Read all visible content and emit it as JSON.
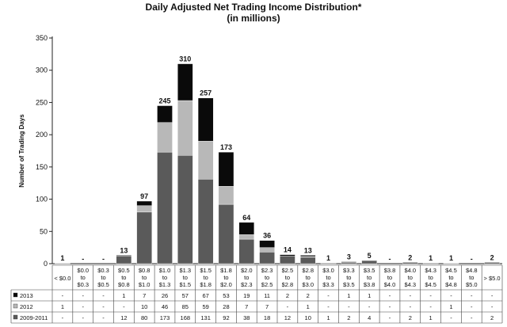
{
  "chart_data": {
    "type": "bar",
    "stacked": true,
    "title": "Daily Adjusted Net Trading Income Distribution*",
    "subtitle": "(in millions)",
    "ylabel": "Number of Trading Days",
    "xlabel": "",
    "ylim": [
      0,
      350
    ],
    "yticks": [
      0,
      50,
      100,
      150,
      200,
      250,
      300,
      350
    ],
    "categories": [
      "< $0.0",
      "$0.0\nto\n$0.3",
      "$0.3\nto\n$0.5",
      "$0.5\nto\n$0.8",
      "$0.8\nto\n$1.0",
      "$1.0\nto\n$1.3",
      "$1.3\nto\n$1.5",
      "$1.5\nto\n$1.8",
      "$1.8\nto\n$2.0",
      "$2.0\nto\n$2.3",
      "$2.3\nto\n$2.5",
      "$2.5\nto\n$2.8",
      "$2.8\nto\n$3.0",
      "$3.0\nto\n$3.3",
      "$3.3\nto\n$3.5",
      "$3.5\nto\n$3.8",
      "$3.8\nto\n$4.0",
      "$4.0\nto\n$4.3",
      "$4.3\nto\n$4.5",
      "$4.5\nto\n$4.8",
      "$4.8\nto\n$5.0",
      "> $5.0"
    ],
    "totals": [
      "1",
      "-",
      "-",
      "13",
      "97",
      "245",
      "310",
      "257",
      "173",
      "64",
      "36",
      "14",
      "13",
      "1",
      "3",
      "5",
      "-",
      "2",
      "1",
      "1",
      "-",
      "2"
    ],
    "series": [
      {
        "name": "2009-2011",
        "color": "#5a5a5a",
        "values": [
          0,
          0,
          0,
          12,
          80,
          173,
          168,
          131,
          92,
          38,
          18,
          12,
          10,
          1,
          2,
          4,
          0,
          2,
          1,
          0,
          0,
          2
        ],
        "labels": [
          "-",
          "-",
          "-",
          "12",
          "80",
          "173",
          "168",
          "131",
          "92",
          "38",
          "18",
          "12",
          "10",
          "1",
          "2",
          "4",
          "-",
          "2",
          "1",
          "-",
          "-",
          "2"
        ]
      },
      {
        "name": "2012",
        "color": "#b8b8b8",
        "values": [
          1,
          0,
          0,
          0,
          10,
          46,
          85,
          59,
          28,
          7,
          7,
          0,
          1,
          0,
          0,
          0,
          0,
          0,
          0,
          1,
          0,
          0
        ],
        "labels": [
          "1",
          "-",
          "-",
          "-",
          "10",
          "46",
          "85",
          "59",
          "28",
          "7",
          "7",
          "-",
          "1",
          "-",
          "-",
          "-",
          "-",
          "-",
          "-",
          "1",
          "-",
          "-"
        ]
      },
      {
        "name": "2013",
        "color": "#0a0a0a",
        "values": [
          0,
          0,
          0,
          1,
          7,
          26,
          57,
          67,
          53,
          19,
          11,
          2,
          2,
          0,
          1,
          1,
          0,
          0,
          0,
          0,
          0,
          0
        ],
        "labels": [
          "-",
          "-",
          "-",
          "1",
          "7",
          "26",
          "57",
          "67",
          "53",
          "19",
          "11",
          "2",
          "2",
          "-",
          "1",
          "1",
          "-",
          "-",
          "-",
          "-",
          "-",
          "-"
        ]
      }
    ],
    "table_row_order": [
      "2013",
      "2012",
      "2009-2011"
    ],
    "grid": false,
    "legend": "table-bottom-left"
  }
}
